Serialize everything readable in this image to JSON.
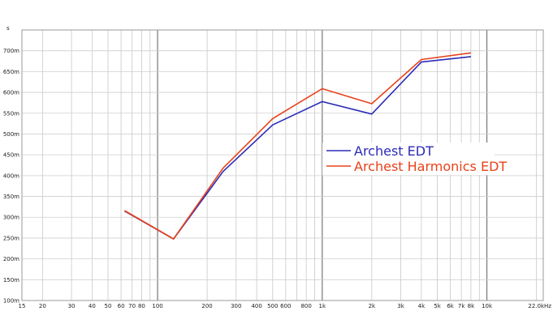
{
  "chart_data": {
    "type": "line",
    "x_scale": "log",
    "xlim": [
      15,
      22000
    ],
    "ylim": [
      100,
      750
    ],
    "y_unit": "s",
    "x_ticks": [
      {
        "v": 15,
        "label": "15"
      },
      {
        "v": 20,
        "label": "20"
      },
      {
        "v": 30,
        "label": "30"
      },
      {
        "v": 40,
        "label": "40"
      },
      {
        "v": 50,
        "label": "50"
      },
      {
        "v": 60,
        "label": "60"
      },
      {
        "v": 70,
        "label": "70"
      },
      {
        "v": 80,
        "label": "80"
      },
      {
        "v": 100,
        "label": "100"
      },
      {
        "v": 200,
        "label": "200"
      },
      {
        "v": 300,
        "label": "300"
      },
      {
        "v": 400,
        "label": "400"
      },
      {
        "v": 500,
        "label": "500"
      },
      {
        "v": 600,
        "label": "600"
      },
      {
        "v": 800,
        "label": "800"
      },
      {
        "v": 1000,
        "label": "1k"
      },
      {
        "v": 2000,
        "label": "2k"
      },
      {
        "v": 3000,
        "label": "3k"
      },
      {
        "v": 4000,
        "label": "4k"
      },
      {
        "v": 5000,
        "label": "5k"
      },
      {
        "v": 6000,
        "label": "6k"
      },
      {
        "v": 7000,
        "label": "7k"
      },
      {
        "v": 8000,
        "label": "8k"
      },
      {
        "v": 10000,
        "label": "10k"
      },
      {
        "v": 22000,
        "label": "22.0kHz"
      }
    ],
    "y_ticks": [
      {
        "v": 100,
        "label": "100m"
      },
      {
        "v": 150,
        "label": "150m"
      },
      {
        "v": 200,
        "label": "200m"
      },
      {
        "v": 250,
        "label": "250m"
      },
      {
        "v": 300,
        "label": "300m"
      },
      {
        "v": 350,
        "label": "350m"
      },
      {
        "v": 400,
        "label": "400m"
      },
      {
        "v": 450,
        "label": "450m"
      },
      {
        "v": 500,
        "label": "500m"
      },
      {
        "v": 550,
        "label": "550m"
      },
      {
        "v": 600,
        "label": "600m"
      },
      {
        "v": 650,
        "label": "650m"
      },
      {
        "v": 700,
        "label": "700m"
      }
    ],
    "series": [
      {
        "name": "Archest EDT",
        "color": "#2b2bb8",
        "points": [
          [
            63,
            315
          ],
          [
            125,
            248
          ],
          [
            250,
            410
          ],
          [
            500,
            522
          ],
          [
            1000,
            578
          ],
          [
            2000,
            548
          ],
          [
            4000,
            673
          ],
          [
            8000,
            686
          ]
        ]
      },
      {
        "name": "Archest Harmonics EDT",
        "color": "#e8421a",
        "points": [
          [
            63,
            316
          ],
          [
            125,
            248
          ],
          [
            250,
            418
          ],
          [
            500,
            537
          ],
          [
            1000,
            609
          ],
          [
            2000,
            573
          ],
          [
            4000,
            679
          ],
          [
            8000,
            695
          ]
        ]
      }
    ],
    "grid": true,
    "legend_position": "right"
  }
}
